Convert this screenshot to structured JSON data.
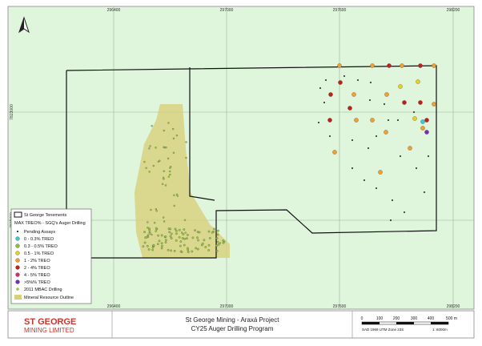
{
  "grid_labels": {
    "x_top": [
      "296400",
      "297000",
      "297600",
      "298200"
    ],
    "x_bottom": [
      "296400",
      "297000",
      "297600",
      "298200"
    ],
    "y_left": [
      "7823000",
      "7822400"
    ]
  },
  "legend": {
    "items": [
      "St George Tenements",
      "MAX TREO% - SGQ's Auger Drilling",
      "Pending Assays",
      "0 - 0.3% TREO",
      "0.3 - 0.5% TREO",
      "0.5 - 1% TREO",
      "1 - 2% TREO",
      "2 - 4% TREO",
      "4 - 5% TREO",
      ">5%% TREO",
      "2011 MBAC Drilling",
      "Mineral Resource Outline"
    ]
  },
  "footer": {
    "logo": {
      "line1": "ST GEORGE",
      "line2": "MINING LIMITED"
    },
    "title": "St George Mining - Araxá Project",
    "subtitle": "CY25 Auger Drilling Program",
    "scale": {
      "labels": [
        "0",
        "100",
        "200",
        "300",
        "400",
        "500 m"
      ],
      "projection": "SAD 1969 UTM Zone 23S",
      "ratio": "1: 6000m"
    }
  }
}
